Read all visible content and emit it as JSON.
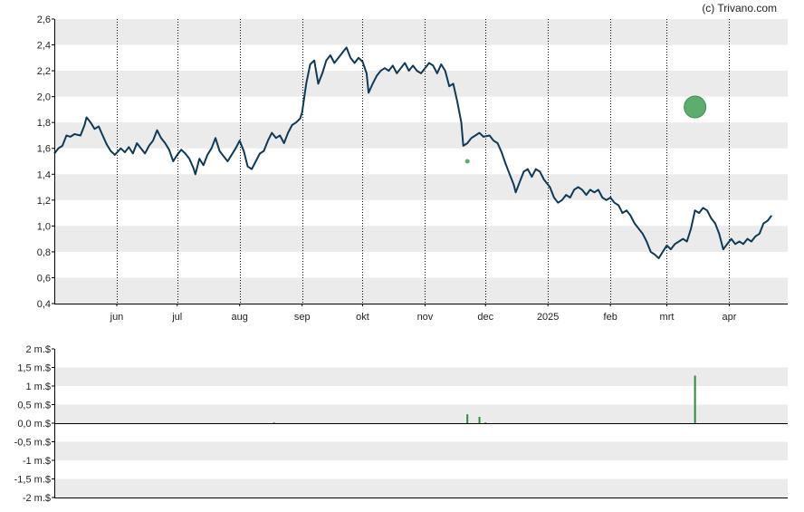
{
  "copyright": "(c) Trivano.com",
  "colors": {
    "price_line": "#0f3a57",
    "band": "#ebebeb",
    "grid": "#000000",
    "volume_bar": "#2e8b3e",
    "marker": "#5cad6e"
  },
  "chart_data": [
    {
      "type": "line",
      "name": "price",
      "x_axis": {
        "range": [
          "2024-05-01",
          "2025-04-30"
        ],
        "ticks": [
          {
            "date": "2024-06-01",
            "label": "jun"
          },
          {
            "date": "2024-07-01",
            "label": "jul"
          },
          {
            "date": "2024-08-01",
            "label": "aug"
          },
          {
            "date": "2024-09-01",
            "label": "sep"
          },
          {
            "date": "2024-10-01",
            "label": "okt"
          },
          {
            "date": "2024-11-01",
            "label": "nov"
          },
          {
            "date": "2024-12-01",
            "label": "dec"
          },
          {
            "date": "2025-01-01",
            "label": "2025"
          },
          {
            "date": "2025-02-01",
            "label": "feb"
          },
          {
            "date": "2025-03-01",
            "label": "mrt"
          },
          {
            "date": "2025-04-01",
            "label": "apr"
          }
        ]
      },
      "y_axis": {
        "range": [
          0.4,
          2.6
        ],
        "ticks": [
          "0,4",
          "0,6",
          "0,8",
          "1,0",
          "1,2",
          "1,4",
          "1,6",
          "1,8",
          "2,0",
          "2,2",
          "2,4",
          "2,6"
        ],
        "tick_values": [
          0.4,
          0.6,
          0.8,
          1.0,
          1.2,
          1.4,
          1.6,
          1.8,
          2.0,
          2.2,
          2.4,
          2.6
        ]
      },
      "grid": true,
      "series": [
        {
          "points": [
            [
              "2024-05-01",
              1.56
            ],
            [
              "2024-05-03",
              1.6
            ],
            [
              "2024-05-05",
              1.62
            ],
            [
              "2024-05-07",
              1.7
            ],
            [
              "2024-05-09",
              1.69
            ],
            [
              "2024-05-11",
              1.71
            ],
            [
              "2024-05-14",
              1.7
            ],
            [
              "2024-05-16",
              1.78
            ],
            [
              "2024-05-17",
              1.84
            ],
            [
              "2024-05-19",
              1.8
            ],
            [
              "2024-05-21",
              1.75
            ],
            [
              "2024-05-23",
              1.77
            ],
            [
              "2024-05-25",
              1.7
            ],
            [
              "2024-05-27",
              1.63
            ],
            [
              "2024-05-29",
              1.58
            ],
            [
              "2024-05-31",
              1.55
            ],
            [
              "2024-06-03",
              1.6
            ],
            [
              "2024-06-05",
              1.57
            ],
            [
              "2024-06-07",
              1.61
            ],
            [
              "2024-06-09",
              1.56
            ],
            [
              "2024-06-11",
              1.64
            ],
            [
              "2024-06-13",
              1.6
            ],
            [
              "2024-06-15",
              1.56
            ],
            [
              "2024-06-17",
              1.62
            ],
            [
              "2024-06-19",
              1.66
            ],
            [
              "2024-06-21",
              1.74
            ],
            [
              "2024-06-23",
              1.68
            ],
            [
              "2024-06-25",
              1.64
            ],
            [
              "2024-06-27",
              1.59
            ],
            [
              "2024-06-29",
              1.5
            ],
            [
              "2024-07-01",
              1.55
            ],
            [
              "2024-07-03",
              1.59
            ],
            [
              "2024-07-05",
              1.56
            ],
            [
              "2024-07-07",
              1.52
            ],
            [
              "2024-07-09",
              1.45
            ],
            [
              "2024-07-10",
              1.4
            ],
            [
              "2024-07-12",
              1.52
            ],
            [
              "2024-07-14",
              1.47
            ],
            [
              "2024-07-16",
              1.55
            ],
            [
              "2024-07-18",
              1.6
            ],
            [
              "2024-07-20",
              1.68
            ],
            [
              "2024-07-22",
              1.58
            ],
            [
              "2024-07-24",
              1.54
            ],
            [
              "2024-07-26",
              1.5
            ],
            [
              "2024-07-28",
              1.55
            ],
            [
              "2024-07-30",
              1.6
            ],
            [
              "2024-08-01",
              1.66
            ],
            [
              "2024-08-03",
              1.58
            ],
            [
              "2024-08-05",
              1.46
            ],
            [
              "2024-08-07",
              1.44
            ],
            [
              "2024-08-09",
              1.5
            ],
            [
              "2024-08-11",
              1.56
            ],
            [
              "2024-08-13",
              1.58
            ],
            [
              "2024-08-15",
              1.66
            ],
            [
              "2024-08-17",
              1.72
            ],
            [
              "2024-08-19",
              1.68
            ],
            [
              "2024-08-21",
              1.7
            ],
            [
              "2024-08-23",
              1.64
            ],
            [
              "2024-08-25",
              1.72
            ],
            [
              "2024-08-27",
              1.78
            ],
            [
              "2024-08-29",
              1.8
            ],
            [
              "2024-08-31",
              1.83
            ],
            [
              "2024-09-01",
              1.88
            ],
            [
              "2024-09-03",
              2.1
            ],
            [
              "2024-09-05",
              2.25
            ],
            [
              "2024-09-07",
              2.28
            ],
            [
              "2024-09-09",
              2.1
            ],
            [
              "2024-09-11",
              2.18
            ],
            [
              "2024-09-13",
              2.28
            ],
            [
              "2024-09-15",
              2.32
            ],
            [
              "2024-09-17",
              2.26
            ],
            [
              "2024-09-19",
              2.3
            ],
            [
              "2024-09-21",
              2.34
            ],
            [
              "2024-09-23",
              2.38
            ],
            [
              "2024-09-25",
              2.3
            ],
            [
              "2024-09-27",
              2.26
            ],
            [
              "2024-09-29",
              2.3
            ],
            [
              "2024-10-01",
              2.27
            ],
            [
              "2024-10-03",
              2.18
            ],
            [
              "2024-10-04",
              2.03
            ],
            [
              "2024-10-06",
              2.1
            ],
            [
              "2024-10-08",
              2.16
            ],
            [
              "2024-10-10",
              2.2
            ],
            [
              "2024-10-12",
              2.22
            ],
            [
              "2024-10-14",
              2.2
            ],
            [
              "2024-10-16",
              2.24
            ],
            [
              "2024-10-18",
              2.18
            ],
            [
              "2024-10-20",
              2.22
            ],
            [
              "2024-10-22",
              2.26
            ],
            [
              "2024-10-24",
              2.2
            ],
            [
              "2024-10-26",
              2.24
            ],
            [
              "2024-10-28",
              2.2
            ],
            [
              "2024-10-30",
              2.18
            ],
            [
              "2024-11-01",
              2.22
            ],
            [
              "2024-11-03",
              2.26
            ],
            [
              "2024-11-05",
              2.24
            ],
            [
              "2024-11-07",
              2.18
            ],
            [
              "2024-11-09",
              2.25
            ],
            [
              "2024-11-11",
              2.2
            ],
            [
              "2024-11-13",
              2.08
            ],
            [
              "2024-11-15",
              2.1
            ],
            [
              "2024-11-17",
              1.96
            ],
            [
              "2024-11-19",
              1.8
            ],
            [
              "2024-11-20",
              1.62
            ],
            [
              "2024-11-22",
              1.64
            ],
            [
              "2024-11-24",
              1.68
            ],
            [
              "2024-11-26",
              1.7
            ],
            [
              "2024-11-28",
              1.72
            ],
            [
              "2024-11-30",
              1.69
            ],
            [
              "2024-12-03",
              1.7
            ],
            [
              "2024-12-05",
              1.66
            ],
            [
              "2024-12-07",
              1.64
            ],
            [
              "2024-12-09",
              1.57
            ],
            [
              "2024-12-11",
              1.48
            ],
            [
              "2024-12-13",
              1.4
            ],
            [
              "2024-12-15",
              1.32
            ],
            [
              "2024-12-16",
              1.26
            ],
            [
              "2024-12-18",
              1.34
            ],
            [
              "2024-12-20",
              1.42
            ],
            [
              "2024-12-22",
              1.44
            ],
            [
              "2024-12-24",
              1.38
            ],
            [
              "2024-12-26",
              1.44
            ],
            [
              "2024-12-28",
              1.42
            ],
            [
              "2024-12-30",
              1.36
            ],
            [
              "2025-01-02",
              1.3
            ],
            [
              "2025-01-04",
              1.22
            ],
            [
              "2025-01-06",
              1.18
            ],
            [
              "2025-01-08",
              1.2
            ],
            [
              "2025-01-10",
              1.24
            ],
            [
              "2025-01-12",
              1.22
            ],
            [
              "2025-01-14",
              1.28
            ],
            [
              "2025-01-16",
              1.3
            ],
            [
              "2025-01-18",
              1.28
            ],
            [
              "2025-01-20",
              1.24
            ],
            [
              "2025-01-22",
              1.28
            ],
            [
              "2025-01-24",
              1.26
            ],
            [
              "2025-01-26",
              1.28
            ],
            [
              "2025-01-28",
              1.22
            ],
            [
              "2025-01-30",
              1.2
            ],
            [
              "2025-02-01",
              1.22
            ],
            [
              "2025-02-03",
              1.18
            ],
            [
              "2025-02-05",
              1.16
            ],
            [
              "2025-02-07",
              1.1
            ],
            [
              "2025-02-09",
              1.12
            ],
            [
              "2025-02-11",
              1.08
            ],
            [
              "2025-02-13",
              1.02
            ],
            [
              "2025-02-15",
              0.98
            ],
            [
              "2025-02-17",
              0.94
            ],
            [
              "2025-02-19",
              0.88
            ],
            [
              "2025-02-21",
              0.8
            ],
            [
              "2025-02-23",
              0.78
            ],
            [
              "2025-02-25",
              0.75
            ],
            [
              "2025-02-27",
              0.8
            ],
            [
              "2025-03-01",
              0.85
            ],
            [
              "2025-03-03",
              0.82
            ],
            [
              "2025-03-05",
              0.86
            ],
            [
              "2025-03-07",
              0.88
            ],
            [
              "2025-03-09",
              0.9
            ],
            [
              "2025-03-11",
              0.88
            ],
            [
              "2025-03-13",
              0.98
            ],
            [
              "2025-03-15",
              1.12
            ],
            [
              "2025-03-17",
              1.1
            ],
            [
              "2025-03-19",
              1.14
            ],
            [
              "2025-03-21",
              1.12
            ],
            [
              "2025-03-23",
              1.06
            ],
            [
              "2025-03-25",
              1.02
            ],
            [
              "2025-03-27",
              0.94
            ],
            [
              "2025-03-29",
              0.82
            ],
            [
              "2025-03-31",
              0.86
            ],
            [
              "2025-04-02",
              0.9
            ],
            [
              "2025-04-04",
              0.86
            ],
            [
              "2025-04-06",
              0.88
            ],
            [
              "2025-04-08",
              0.86
            ],
            [
              "2025-04-10",
              0.9
            ],
            [
              "2025-04-12",
              0.88
            ],
            [
              "2025-04-14",
              0.92
            ],
            [
              "2025-04-16",
              0.94
            ],
            [
              "2025-04-18",
              1.02
            ],
            [
              "2025-04-20",
              1.04
            ],
            [
              "2025-04-22",
              1.08
            ]
          ]
        }
      ],
      "markers": [
        {
          "date": "2024-11-22",
          "value": 1.5,
          "size": "small"
        },
        {
          "date": "2025-03-15",
          "value": 1.92,
          "size": "large"
        }
      ]
    },
    {
      "type": "bar",
      "name": "volume",
      "y_axis": {
        "range": [
          -2,
          2
        ],
        "ticks": [
          "-2 m.$",
          "-1,5 m.$",
          "-1 m.$",
          "-0,5 m.$",
          "0,0 m.$",
          "0,5 m.$",
          "1 m.$",
          "1,5 m.$",
          "2 m.$"
        ],
        "tick_values": [
          -2,
          -1.5,
          -1,
          -0.5,
          0,
          0.5,
          1,
          1.5,
          2
        ]
      },
      "grid": true,
      "bars": [
        {
          "date": "2024-08-18",
          "value": 0.02
        },
        {
          "date": "2024-11-22",
          "value": 0.24
        },
        {
          "date": "2024-11-28",
          "value": 0.17
        },
        {
          "date": "2024-12-01",
          "value": 0.02
        },
        {
          "date": "2025-03-15",
          "value": 1.28
        }
      ]
    }
  ]
}
